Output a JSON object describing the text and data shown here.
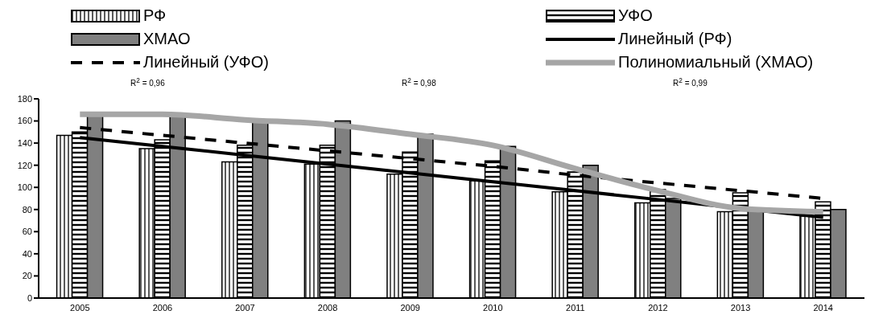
{
  "chart_data": {
    "type": "bar",
    "categories": [
      "2005",
      "2006",
      "2007",
      "2008",
      "2009",
      "2010",
      "2011",
      "2012",
      "2013",
      "2014"
    ],
    "series": [
      {
        "name": "РФ",
        "color": "#000000",
        "values": [
          147,
          135,
          123,
          121,
          112,
          106,
          96,
          86,
          78,
          74
        ]
      },
      {
        "name": "УФО",
        "color": "#000000",
        "values": [
          150,
          143,
          138,
          138,
          132,
          124,
          114,
          98,
          95,
          87
        ]
      },
      {
        "name": "ХМАО",
        "color": "#808080",
        "values": [
          165,
          165,
          160,
          160,
          148,
          137,
          120,
          90,
          80,
          80
        ]
      },
      {
        "name": "Линейный (РФ)",
        "type": "line",
        "color": "#000000",
        "line_style": "solid",
        "values": [
          145,
          137,
          129,
          121,
          113,
          105,
          97,
          89,
          81,
          73
        ]
      },
      {
        "name": "Линейный (УФО)",
        "type": "line",
        "color": "#000000",
        "line_style": "dashed",
        "values": [
          154,
          147,
          140,
          133,
          126,
          119,
          111,
          104,
          97,
          90
        ]
      },
      {
        "name": "Полиномиальный (ХМАО)",
        "type": "line",
        "color": "#a6a6a6",
        "line_style": "solid",
        "values": [
          166,
          166,
          161,
          157,
          148,
          138,
          117,
          97,
          81,
          78
        ]
      }
    ],
    "annotations": [
      "R$^{2}$ = 0,96",
      "R$^{2}$ = 0,98",
      "R$^{2}$ = 0,99"
    ],
    "ylim": [
      0,
      180
    ],
    "yticks": [
      0,
      20,
      40,
      60,
      80,
      100,
      120,
      140,
      160,
      180
    ],
    "grid": false,
    "legend": "top",
    "marker": "none"
  }
}
